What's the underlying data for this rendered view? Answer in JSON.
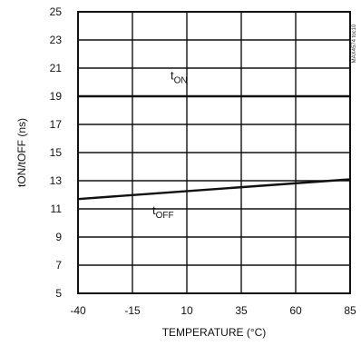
{
  "chart_data": {
    "type": "line",
    "xlabel": "TEMPERATURE (°C)",
    "ylabel": "tON/tOFF (ns)",
    "xlim": [
      -40,
      85
    ],
    "ylim": [
      5,
      25
    ],
    "xticks": [
      -40,
      -15,
      10,
      35,
      60,
      85
    ],
    "yticks": [
      5,
      7,
      9,
      11,
      13,
      15,
      17,
      19,
      21,
      23,
      25
    ],
    "grid": true,
    "series": [
      {
        "name": "tON",
        "x": [
          -40,
          85
        ],
        "y": [
          19.0,
          19.0
        ]
      },
      {
        "name": "tOFF",
        "x": [
          -40,
          85
        ],
        "y": [
          11.7,
          13.1
        ]
      }
    ],
    "annotations": {
      "ton": {
        "main": "t",
        "sub": "ON"
      },
      "toff": {
        "main": "t",
        "sub": "OFF"
      },
      "side_code": "MAX4574 toc10"
    }
  }
}
